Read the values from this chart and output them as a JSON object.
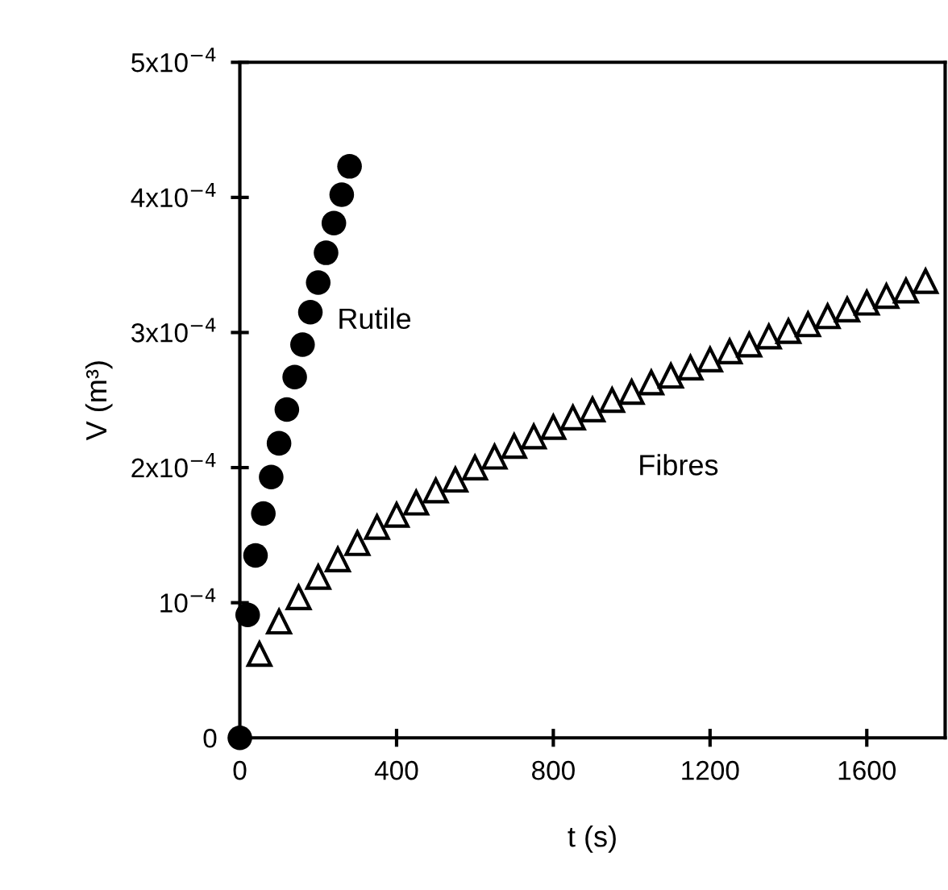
{
  "chart_data": {
    "type": "scatter",
    "xlabel": "t (s)",
    "ylabel": "V (m³)",
    "xlim": [
      0,
      1800
    ],
    "xticks": [
      0,
      400,
      800,
      1200,
      1600
    ],
    "ylim": [
      0,
      0.0005
    ],
    "yticks": [
      0,
      {
        "value": 0.0001,
        "label": "10$^{−4}$"
      },
      {
        "value": 0.0002,
        "label": "2x10$^{−4}$"
      },
      {
        "value": 0.0003,
        "label": "3x10$^{−4}$"
      },
      {
        "value": 0.0004,
        "label": "4x10$^{−4}$"
      },
      {
        "value": 0.0005,
        "label": "5x10$^{−4}$"
      }
    ],
    "grid": false,
    "legend": false,
    "series": [
      {
        "name": "Rutile",
        "color": "#000000",
        "marker": "circle",
        "x": [
          0,
          20,
          40,
          60,
          80,
          100,
          120,
          140,
          160,
          180,
          200,
          220,
          240,
          260,
          280
        ],
        "values": [
          0,
          9.1e-05,
          0.000135,
          0.000166,
          0.000193,
          0.000218,
          0.000243,
          0.000267,
          0.000291,
          0.000315,
          0.000337,
          0.000359,
          0.000381,
          0.000402,
          0.000423
        ]
      },
      {
        "name": "Fibres",
        "color": "#ffffff",
        "marker": "triangle",
        "x": [
          50,
          100,
          150,
          200,
          250,
          300,
          350,
          400,
          450,
          500,
          550,
          600,
          650,
          700,
          750,
          800,
          850,
          900,
          950,
          1000,
          1050,
          1100,
          1150,
          1200,
          1250,
          1300,
          1350,
          1400,
          1450,
          1500,
          1550,
          1600,
          1650,
          1700,
          1750
        ],
        "values": [
          6.2e-05,
          8.6e-05,
          0.000104,
          0.000119,
          0.000132,
          0.000144,
          0.000156,
          0.000165,
          0.000174,
          0.000183,
          0.000191,
          0.0002,
          0.000208,
          0.000216,
          0.000223,
          0.00023,
          0.000237,
          0.000243,
          0.00025,
          0.000256,
          0.000263,
          0.000268,
          0.000274,
          0.00028,
          0.000286,
          0.000291,
          0.000297,
          0.000301,
          0.000306,
          0.000312,
          0.000317,
          0.000322,
          0.000327,
          0.000331,
          0.000338
        ]
      }
    ]
  }
}
